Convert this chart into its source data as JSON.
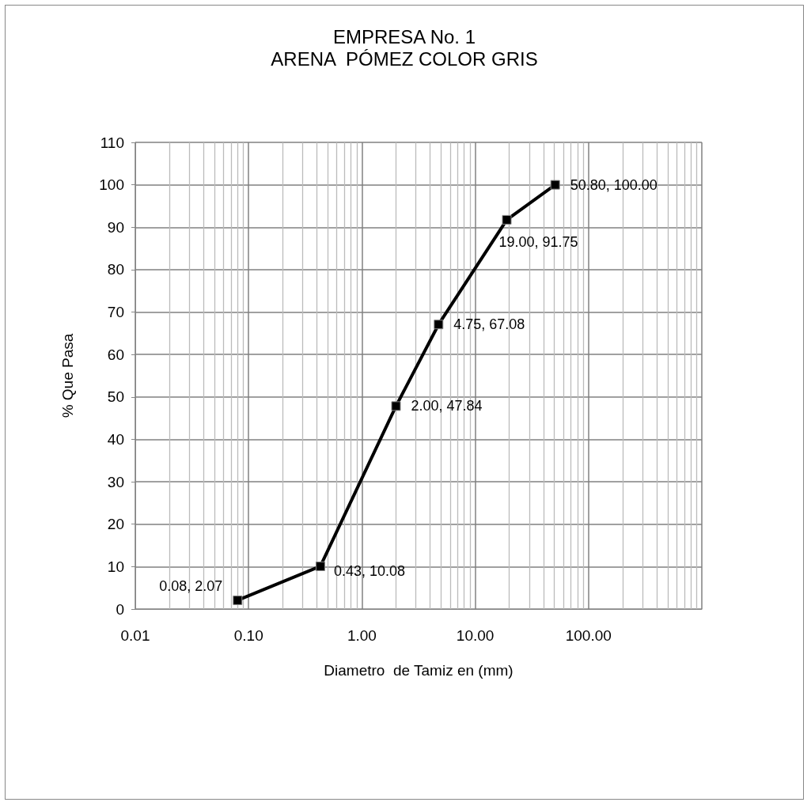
{
  "chart_data": {
    "type": "line",
    "title": "EMPRESA No. 1",
    "subtitle": "ARENA  PÓMEZ COLOR GRIS",
    "xlabel": "Diametro  de Tamiz en (mm)",
    "ylabel": "% Que Pasa",
    "x": [
      0.08,
      0.43,
      2.0,
      4.75,
      19.0,
      50.8
    ],
    "series": [
      {
        "color": "#000000",
        "values": [
          2.07,
          10.08,
          47.84,
          67.08,
          91.75,
          100.0
        ],
        "value_labels": [
          "0.08, 2.07",
          "0.43, 10.08",
          "2.00, 47.84",
          "4.75, 67.08",
          "19.00, 91.75",
          "50.80, 100.00"
        ]
      }
    ],
    "log": "x",
    "xlim": [
      0.01,
      1000
    ],
    "xticks": [
      0.01,
      {
        "value": 0.1,
        "label": "0.10"
      },
      {
        "value": 1,
        "label": "1.00"
      },
      {
        "value": 10,
        "label": "10.00"
      },
      {
        "value": 100,
        "label": "100.00"
      },
      {
        "value": 1000,
        "label": null
      }
    ],
    "ylim": [
      0,
      110
    ],
    "yticks": [
      0,
      10,
      20,
      30,
      40,
      50,
      60,
      70,
      80,
      90,
      100,
      110
    ],
    "grid": true,
    "marker": "square",
    "line_style": "solid"
  }
}
